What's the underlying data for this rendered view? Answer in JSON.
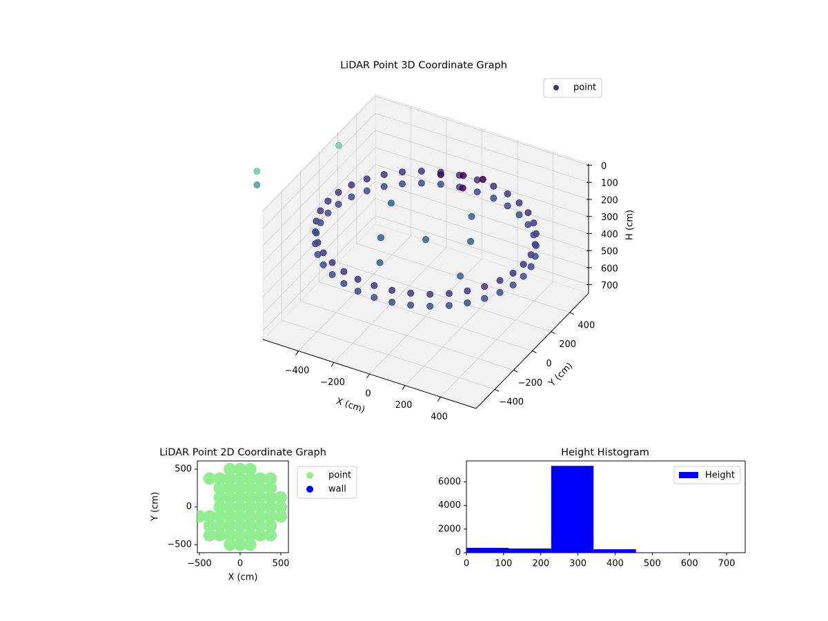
{
  "chart_data": [
    {
      "type": "scatter3d",
      "title": "LiDAR Point 3D Coordinate Graph",
      "x_label": "X (cm)",
      "y_label": "Y (cm)",
      "z_label": "H (cm)",
      "xlim": [
        -600,
        600
      ],
      "ylim": [
        -600,
        600
      ],
      "zlim": [
        750,
        -10
      ],
      "xticks": [
        {
          "value": -400,
          "label": "−400"
        },
        {
          "value": -200,
          "label": "−200"
        },
        0,
        200,
        400
      ],
      "yticks": [
        {
          "value": -400,
          "label": "−400"
        },
        {
          "value": -200,
          "label": "−200"
        },
        0,
        200,
        400
      ],
      "zticks": [
        0,
        100,
        200,
        300,
        400,
        500,
        600,
        700
      ],
      "grid": true,
      "legend": "upper right",
      "pane_color": "#f2f2f2",
      "series": [
        {
          "name": "point",
          "color": "#46337e",
          "x": [
            550,
            542,
            517,
            476,
            421,
            354,
            275,
            188,
            96,
            0,
            -96,
            -188,
            -275,
            -354,
            -421,
            -476,
            -517,
            -542,
            -550,
            -542,
            -517,
            -476,
            -421,
            -354,
            -275,
            -188,
            -96,
            0,
            96,
            188,
            275,
            354,
            421,
            476,
            517,
            542,
            550,
            542,
            517,
            476,
            421,
            354,
            275,
            188,
            96,
            0,
            -96,
            -188,
            -275,
            -354,
            -421,
            -476,
            -517,
            -542,
            -550,
            -542,
            -517,
            -476,
            -421,
            -354,
            -275,
            -188,
            -96,
            0,
            96,
            188,
            275,
            354,
            421,
            476,
            517,
            542,
            200,
            0,
            -200,
            300,
            100,
            -100,
            -300,
            -100,
            0,
            100,
            50,
            -950,
            -950,
            -700
          ],
          "y": [
            0,
            96,
            188,
            275,
            354,
            421,
            476,
            517,
            542,
            550,
            542,
            517,
            476,
            421,
            354,
            275,
            188,
            96,
            0,
            -96,
            -188,
            -275,
            -354,
            -421,
            -476,
            -517,
            -542,
            -550,
            -542,
            -517,
            -476,
            -421,
            -354,
            -275,
            -188,
            -96,
            0,
            96,
            188,
            275,
            354,
            421,
            476,
            517,
            542,
            550,
            542,
            517,
            476,
            421,
            354,
            275,
            188,
            96,
            0,
            -96,
            -188,
            -275,
            -354,
            -421,
            -476,
            -517,
            -542,
            -550,
            -542,
            -517,
            -476,
            -421,
            -354,
            -275,
            -188,
            -96,
            100,
            0,
            -100,
            -200,
            300,
            -300,
            200,
            350,
            400,
            420,
            300,
            0,
            0,
            400
          ],
          "z": [
            260,
            260,
            260,
            260,
            260,
            260,
            260,
            260,
            260,
            260,
            260,
            260,
            260,
            260,
            260,
            260,
            260,
            260,
            260,
            260,
            260,
            260,
            260,
            260,
            260,
            260,
            260,
            260,
            260,
            260,
            260,
            260,
            260,
            260,
            260,
            260,
            330,
            330,
            330,
            330,
            330,
            330,
            330,
            330,
            330,
            330,
            330,
            330,
            330,
            330,
            330,
            330,
            330,
            330,
            330,
            330,
            330,
            330,
            330,
            330,
            330,
            330,
            330,
            330,
            330,
            330,
            330,
            330,
            330,
            330,
            330,
            330,
            300,
            300,
            300,
            300,
            300,
            300,
            300,
            150,
            150,
            150,
            150,
            220,
            300,
            210
          ],
          "colors": [
            "#453781",
            "#453781",
            "#453781",
            "#453781",
            "#453781",
            "#453781",
            "#453781",
            "#453781",
            "#453781",
            "#453781",
            "#453781",
            "#453781",
            "#453781",
            "#453781",
            "#453781",
            "#453781",
            "#453781",
            "#453781",
            "#453781",
            "#453781",
            "#453781",
            "#453781",
            "#453781",
            "#453781",
            "#453781",
            "#453781",
            "#453781",
            "#453781",
            "#453781",
            "#453781",
            "#453781",
            "#453781",
            "#453781",
            "#453781",
            "#453781",
            "#453781",
            "#3d4d8a",
            "#3d4d8a",
            "#3d4d8a",
            "#3d4d8a",
            "#3d4d8a",
            "#3d4d8a",
            "#3d4d8a",
            "#3d4d8a",
            "#3d4d8a",
            "#3d4d8a",
            "#3d4d8a",
            "#3d4d8a",
            "#3d4d8a",
            "#3d4d8a",
            "#3d4d8a",
            "#3d4d8a",
            "#3d4d8a",
            "#3d4d8a",
            "#3d4d8a",
            "#3d4d8a",
            "#3d4d8a",
            "#3d4d8a",
            "#3d4d8a",
            "#3d4d8a",
            "#3d4d8a",
            "#3d4d8a",
            "#3d4d8a",
            "#3d4d8a",
            "#3d4d8a",
            "#3d4d8a",
            "#3d4d8a",
            "#3d4d8a",
            "#3d4d8a",
            "#3d4d8a",
            "#3d4d8a",
            "#3d4d8a",
            "#33638d",
            "#33638d",
            "#33638d",
            "#33638d",
            "#33638d",
            "#33638d",
            "#33638d",
            "#440154",
            "#440154",
            "#440154",
            "#440154",
            "#6ec9a3",
            "#4f9e9b",
            "#72cea5"
          ]
        }
      ]
    },
    {
      "type": "scatter",
      "title": "LiDAR Point 2D Coordinate Graph",
      "x_label": "X (cm)",
      "y_label": "Y (cm)",
      "xlim": [
        -525,
        593
      ],
      "ylim": [
        -606,
        609
      ],
      "xticks": [
        {
          "value": -500,
          "label": "−500"
        },
        0,
        500
      ],
      "yticks": [
        {
          "value": -500,
          "label": "−500"
        },
        0,
        500
      ],
      "legend": "outside right",
      "series": [
        {
          "name": "point",
          "color": "#90ee90",
          "x": [
            -500,
            -375,
            -375,
            -375,
            -375,
            -250,
            -250,
            -250,
            -250,
            -250,
            -250,
            -250,
            -125,
            -125,
            -125,
            -125,
            -125,
            -125,
            -125,
            -125,
            -125,
            0,
            0,
            0,
            0,
            0,
            0,
            0,
            0,
            0,
            125,
            125,
            125,
            125,
            125,
            125,
            125,
            125,
            125,
            250,
            250,
            250,
            250,
            250,
            250,
            250,
            375,
            375,
            375,
            375,
            375,
            375,
            375,
            500,
            500,
            500
          ],
          "y": [
            -125,
            -375,
            -250,
            -125,
            375,
            -375,
            -250,
            -125,
            0,
            125,
            250,
            375,
            -500,
            -375,
            -250,
            -125,
            0,
            125,
            250,
            375,
            500,
            -500,
            -375,
            -250,
            -125,
            0,
            125,
            250,
            375,
            500,
            -500,
            -375,
            -250,
            -125,
            0,
            125,
            250,
            375,
            500,
            -375,
            -250,
            -125,
            0,
            125,
            250,
            375,
            -375,
            -250,
            -125,
            0,
            125,
            250,
            375,
            -125,
            0,
            125
          ]
        },
        {
          "name": "wall",
          "color": "#0000ff",
          "x": [],
          "y": []
        }
      ]
    },
    {
      "type": "hist",
      "title": "Height Histogram",
      "series_name": "Height",
      "color": "#0000ff",
      "bins": [
        0,
        114,
        228,
        342,
        456,
        570,
        684,
        798
      ],
      "counts": [
        410,
        350,
        7350,
        290,
        10,
        5,
        5
      ],
      "xlim": [
        0,
        750
      ],
      "ylim": [
        0,
        7770
      ],
      "xticks": [
        0,
        100,
        200,
        300,
        400,
        500,
        600,
        700
      ],
      "yticks": [
        0,
        2000,
        4000,
        6000
      ],
      "legend": "upper right"
    }
  ]
}
